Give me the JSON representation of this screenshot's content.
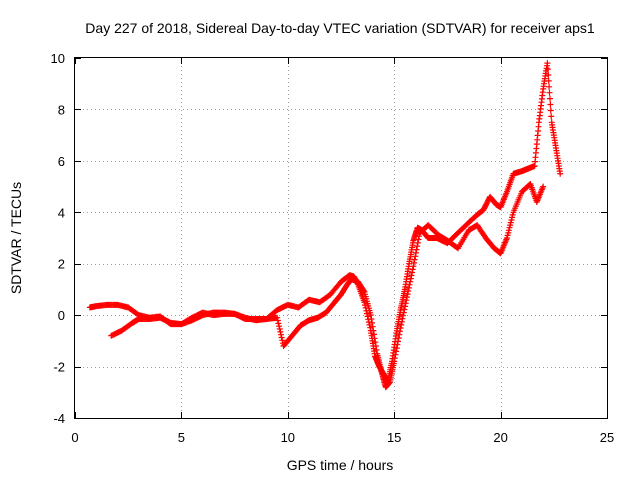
{
  "chart_data": {
    "type": "scatter",
    "title": "Day 227 of 2018, Sidereal Day-to-day VTEC variation (SDTVAR) for receiver aps1",
    "xlabel": "GPS time / hours",
    "ylabel": "SDTVAR / TECUs",
    "xlim": [
      0,
      25
    ],
    "ylim": [
      -4,
      10
    ],
    "xticks": [
      0,
      5,
      10,
      15,
      20,
      25
    ],
    "yticks": [
      -4,
      -2,
      0,
      2,
      4,
      6,
      8,
      10
    ],
    "grid": true,
    "marker": "+",
    "color": "#ff0000",
    "legend": "none",
    "series": [
      {
        "name": "trace-main",
        "x": [
          0.7,
          1.0,
          1.5,
          2.0,
          2.5,
          3.0,
          3.5,
          4.0,
          4.5,
          5.0,
          5.5,
          6.0,
          6.5,
          7.0,
          7.5,
          8.0,
          8.5,
          9.0,
          9.5,
          10.0,
          10.5,
          11.0,
          11.5,
          12.0,
          12.5,
          12.9,
          13.1,
          13.3,
          13.6,
          13.9,
          14.1,
          14.3,
          14.5,
          14.7,
          14.9,
          15.1,
          15.3,
          15.5,
          15.7,
          15.9,
          16.1,
          16.3,
          16.6,
          17.0,
          17.5,
          18.0,
          18.5,
          18.9,
          19.2,
          19.5,
          19.8,
          20.0,
          20.3,
          20.6,
          21.0,
          21.3,
          21.6,
          21.8,
          22.0,
          22.2,
          22.4,
          22.6,
          22.8
        ],
        "y": [
          0.3,
          0.35,
          0.4,
          0.4,
          0.3,
          0.0,
          -0.1,
          -0.05,
          -0.35,
          -0.35,
          -0.1,
          0.1,
          0.0,
          0.05,
          0.05,
          -0.1,
          -0.2,
          -0.15,
          0.2,
          0.4,
          0.3,
          0.6,
          0.5,
          0.8,
          1.3,
          1.55,
          1.5,
          1.2,
          0.5,
          -0.6,
          -1.6,
          -2.0,
          -2.3,
          -2.6,
          -1.8,
          -0.7,
          0.2,
          1.0,
          2.0,
          2.9,
          3.4,
          3.3,
          3.0,
          3.0,
          2.8,
          3.2,
          3.6,
          3.9,
          4.1,
          4.6,
          4.3,
          4.2,
          4.8,
          5.5,
          5.6,
          5.7,
          5.8,
          7.5,
          8.8,
          9.8,
          7.5,
          6.5,
          5.5
        ]
      },
      {
        "name": "trace-secondary",
        "x": [
          1.7,
          2.2,
          2.7,
          3.0,
          3.5,
          4.0,
          4.5,
          5.0,
          5.5,
          6.0,
          6.5,
          7.0,
          7.5,
          8.0,
          8.5,
          9.0,
          9.5,
          9.8,
          10.2,
          10.6,
          11.0,
          11.4,
          11.8,
          12.2,
          12.5,
          12.8,
          13.0,
          13.3,
          13.6,
          13.9,
          14.2,
          14.4,
          14.6,
          14.8,
          15.0,
          15.3,
          15.6,
          15.9,
          16.2,
          16.6,
          17.1,
          17.5,
          18.0,
          18.5,
          18.9,
          19.3,
          19.7,
          20.0,
          20.3,
          20.6,
          21.0,
          21.4,
          21.7,
          22.0
        ],
        "y": [
          -0.8,
          -0.6,
          -0.3,
          -0.15,
          -0.15,
          -0.1,
          -0.3,
          -0.35,
          -0.2,
          0.0,
          0.1,
          0.1,
          0.05,
          -0.15,
          -0.15,
          -0.15,
          -0.1,
          -1.2,
          -0.8,
          -0.4,
          -0.2,
          -0.1,
          0.1,
          0.5,
          0.8,
          1.2,
          1.4,
          1.3,
          0.9,
          0.0,
          -1.5,
          -2.2,
          -2.8,
          -2.6,
          -1.8,
          -0.5,
          0.7,
          1.9,
          3.2,
          3.5,
          3.1,
          2.9,
          2.6,
          3.3,
          3.5,
          3.0,
          2.6,
          2.4,
          3.0,
          4.0,
          4.8,
          5.1,
          4.4,
          5.0
        ]
      }
    ]
  }
}
